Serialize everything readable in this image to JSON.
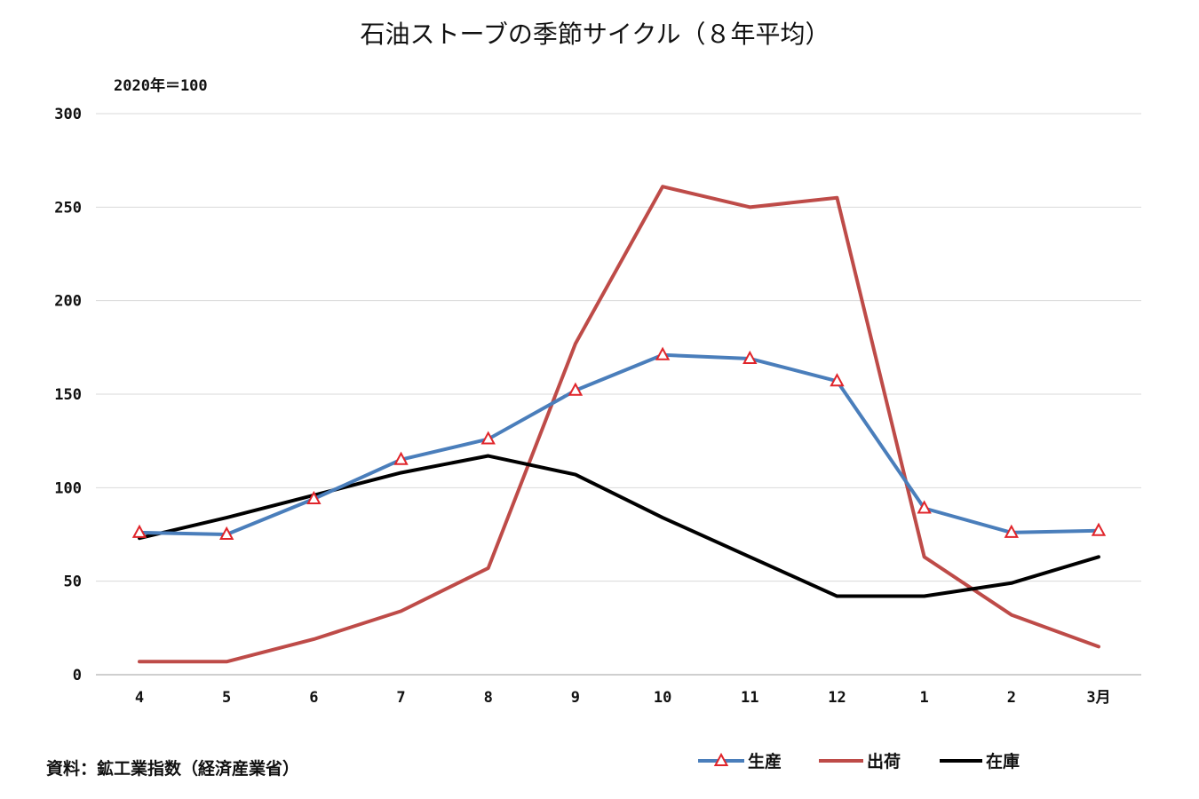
{
  "chart_data": {
    "type": "line",
    "title": "石油ストーブの季節サイクル（８年平均）",
    "unit_label": "2020年＝100",
    "source": "資料：鉱工業指数（経済産業省）",
    "categories": [
      "4",
      "5",
      "6",
      "7",
      "8",
      "9",
      "10",
      "11",
      "12",
      "1",
      "2",
      "3月"
    ],
    "ylim": [
      0,
      300
    ],
    "yticks": [
      0,
      50,
      100,
      150,
      200,
      250,
      300
    ],
    "grid": true,
    "legend_position": "bottom-right",
    "series": [
      {
        "name": "生産",
        "color": "#4a7ebb",
        "marker": "triangle",
        "marker_color": "#e0242a",
        "values": [
          76,
          75,
          94,
          115,
          126,
          152,
          171,
          169,
          157,
          89,
          76,
          77
        ]
      },
      {
        "name": "出荷",
        "color": "#be4b48",
        "marker": "none",
        "values": [
          7,
          7,
          19,
          34,
          57,
          177,
          261,
          250,
          255,
          63,
          32,
          15
        ]
      },
      {
        "name": "在庫",
        "color": "#000000",
        "marker": "none",
        "values": [
          73,
          84,
          96,
          108,
          117,
          107,
          84,
          63,
          42,
          42,
          49,
          63
        ]
      }
    ]
  }
}
